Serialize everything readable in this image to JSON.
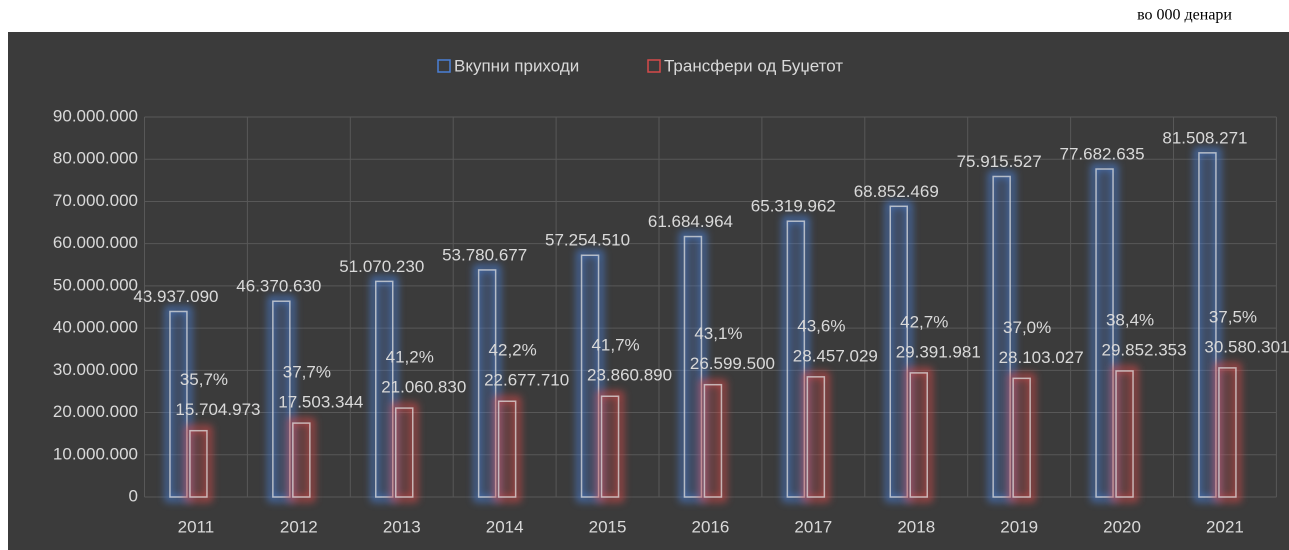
{
  "chart_data": {
    "type": "bar",
    "unit_note": "во 000 денари",
    "categories": [
      "2011",
      "2012",
      "2013",
      "2014",
      "2015",
      "2016",
      "2017",
      "2018",
      "2019",
      "2020",
      "2021"
    ],
    "series": [
      {
        "name": "Вкупни приходи",
        "color": "#4a7fd6",
        "values": [
          43937090,
          46370630,
          51070230,
          53780677,
          57254510,
          61684964,
          65319962,
          68852469,
          75915527,
          77682635,
          81508271
        ],
        "value_labels": [
          "43.937.090",
          "46.370.630",
          "51.070.230",
          "53.780.677",
          "57.254.510",
          "61.684.964",
          "65.319.962",
          "68.852.469",
          "75.915.527",
          "77.682.635",
          "81.508.271"
        ]
      },
      {
        "name": "Трансфери од Буџетот",
        "color": "#d64a4a",
        "values": [
          15704973,
          17503344,
          21060830,
          22677710,
          23860890,
          26599500,
          28457029,
          29391981,
          28103027,
          29852353,
          30580301
        ],
        "value_labels": [
          "15.704.973",
          "17.503.344",
          "21.060.830",
          "22.677.710",
          "23.860.890",
          "26.599.500",
          "28.457.029",
          "29.391.981",
          "28.103.027",
          "29.852.353",
          "30.580.301"
        ]
      }
    ],
    "share_labels": [
      "35,7%",
      "37,7%",
      "41,2%",
      "42,2%",
      "41,7%",
      "43,1%",
      "43,6%",
      "42,7%",
      "37,0%",
      "38,4%",
      "37,5%"
    ],
    "ylim": [
      0,
      90000000
    ],
    "yticks": [
      0,
      {
        "value": 10000000,
        "label": "10.000.000"
      },
      {
        "value": 20000000,
        "label": "20.000.000"
      },
      {
        "value": 30000000,
        "label": "30.000.000"
      },
      {
        "value": 40000000,
        "label": "40.000.000"
      },
      {
        "value": 50000000,
        "label": "50.000.000"
      },
      {
        "value": 60000000,
        "label": "60.000.000"
      },
      {
        "value": 70000000,
        "label": "70.000.000"
      },
      {
        "value": 80000000,
        "label": "80.000.000"
      },
      {
        "value": 90000000,
        "label": "90.000.000"
      }
    ],
    "grid": true,
    "legend": "top"
  }
}
